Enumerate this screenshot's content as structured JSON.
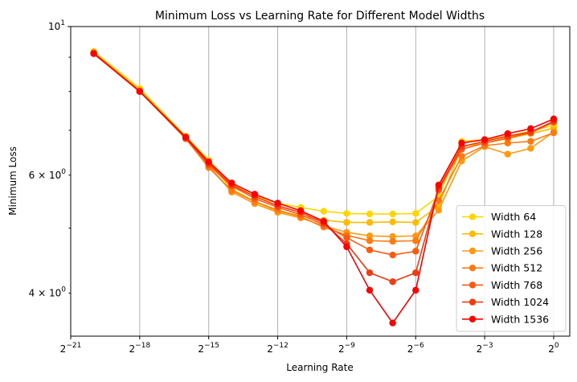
{
  "chart_data": {
    "type": "line",
    "title": "Minimum Loss vs Learning Rate for Different Model Widths",
    "xlabel": "Learning Rate",
    "ylabel": "Minimum Loss",
    "xscale": "log2",
    "yscale": "log",
    "xlim_exp2": [
      -21,
      0.7
    ],
    "ylim": [
      3.45,
      10
    ],
    "x_ticks": [
      {
        "exp": -21,
        "base": "2",
        "sup": "−21"
      },
      {
        "exp": -18,
        "base": "2",
        "sup": "−18"
      },
      {
        "exp": -15,
        "base": "2",
        "sup": "−15"
      },
      {
        "exp": -12,
        "base": "2",
        "sup": "−12"
      },
      {
        "exp": -9,
        "base": "2",
        "sup": "−9"
      },
      {
        "exp": -6,
        "base": "2",
        "sup": "−6"
      },
      {
        "exp": -3,
        "base": "2",
        "sup": "−3"
      },
      {
        "exp": 0,
        "base": "2",
        "sup": "0"
      }
    ],
    "y_ticks_major": [
      {
        "value": 10,
        "base": "10",
        "sup": "1"
      }
    ],
    "y_ticks_minor_labeled": [
      {
        "value": 6,
        "base": "6 × 10",
        "sup": "0"
      },
      {
        "value": 4,
        "base": "4 × 10",
        "sup": "0"
      }
    ],
    "y_ticks_minor": [
      5,
      7,
      8,
      9
    ],
    "grid": "x-major",
    "legend_position": "lower right",
    "x_exp2": [
      -20,
      -18,
      -16,
      -15,
      -14,
      -13,
      -12,
      -11,
      -10,
      -9,
      -8,
      -7,
      -6,
      -5,
      -4,
      -3,
      -2,
      -1,
      0
    ],
    "series": [
      {
        "name": "Width 64",
        "color": "#ffd700",
        "values": [
          9.18,
          8.08,
          6.86,
          6.32,
          5.82,
          5.58,
          5.45,
          5.37,
          5.3,
          5.26,
          5.25,
          5.25,
          5.26,
          5.58,
          6.74,
          6.78,
          6.86,
          6.98,
          7.12
        ]
      },
      {
        "name": "Width 128",
        "color": "#ffbb00",
        "values": [
          9.16,
          8.04,
          6.82,
          6.28,
          5.72,
          5.48,
          5.3,
          5.22,
          5.14,
          5.1,
          5.1,
          5.11,
          5.1,
          5.4,
          6.62,
          6.7,
          6.8,
          6.92,
          7.05
        ]
      },
      {
        "name": "Width 256",
        "color": "#ff9a10",
        "values": [
          9.14,
          8.02,
          6.8,
          6.2,
          5.66,
          5.44,
          5.28,
          5.18,
          5.04,
          4.93,
          4.87,
          4.86,
          4.87,
          5.32,
          6.3,
          6.62,
          6.45,
          6.58,
          6.96
        ]
      },
      {
        "name": "Width 512",
        "color": "#ff7a10",
        "values": [
          9.13,
          8.0,
          6.8,
          6.16,
          5.69,
          5.48,
          5.32,
          5.2,
          5.02,
          4.88,
          4.79,
          4.78,
          4.79,
          5.5,
          6.4,
          6.64,
          6.7,
          6.74,
          6.94
        ]
      },
      {
        "name": "Width 768",
        "color": "#ff5a10",
        "values": [
          9.12,
          8.0,
          6.81,
          6.22,
          5.78,
          5.54,
          5.37,
          5.24,
          5.06,
          4.84,
          4.64,
          4.56,
          4.62,
          5.7,
          6.56,
          6.7,
          6.82,
          6.94,
          7.2
        ]
      },
      {
        "name": "Width 1024",
        "color": "#f03c10",
        "values": [
          9.12,
          8.0,
          6.82,
          6.24,
          5.8,
          5.58,
          5.4,
          5.28,
          5.09,
          4.74,
          4.29,
          4.16,
          4.29,
          5.74,
          6.62,
          6.74,
          6.86,
          6.96,
          7.22
        ]
      },
      {
        "name": "Width 1536",
        "color": "#ff0000",
        "values": [
          9.11,
          8.0,
          6.84,
          6.28,
          5.84,
          5.62,
          5.45,
          5.31,
          5.12,
          4.69,
          4.04,
          3.61,
          4.04,
          5.8,
          6.7,
          6.78,
          6.92,
          7.04,
          7.28
        ]
      }
    ]
  }
}
